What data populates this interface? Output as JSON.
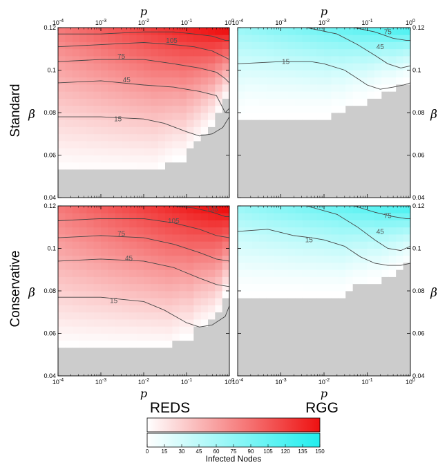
{
  "chart_data": {
    "type": "heatmap",
    "row_labels": [
      "Standard",
      "Conservative"
    ],
    "col_labels": [
      "REDS",
      "RGG"
    ],
    "x_axis": {
      "label": "p",
      "scale": "log",
      "range": [
        0.0001,
        1
      ],
      "ticks": [
        {
          "value": 0.0001,
          "base": "10",
          "exp": "-4"
        },
        {
          "value": 0.001,
          "base": "10",
          "exp": "-3"
        },
        {
          "value": 0.01,
          "base": "10",
          "exp": "-2"
        },
        {
          "value": 0.1,
          "base": "10",
          "exp": "-1"
        },
        {
          "value": 1,
          "base": "10",
          "exp": "0"
        }
      ]
    },
    "y_axis": {
      "label": "β",
      "range": [
        0.04,
        0.12
      ],
      "ticks": [
        {
          "value": 0.04,
          "label": "0.04"
        },
        {
          "value": 0.06,
          "label": "0.06"
        },
        {
          "value": 0.08,
          "label": "0.08"
        },
        {
          "value": 0.1,
          "label": "0.1"
        },
        {
          "value": 0.12,
          "label": "0.12"
        }
      ]
    },
    "colorbar": {
      "label": "Infected Nodes",
      "range": [
        0,
        150
      ],
      "ticks": [
        "0",
        "15",
        "30",
        "45",
        "60",
        "75",
        "90",
        "105",
        "120",
        "135",
        "150"
      ],
      "reds_color": "#ee1111",
      "rgg_color": "#22eeee",
      "null_color": "#cccccc"
    },
    "panels": [
      {
        "row": "Standard",
        "network": "REDS",
        "threshold_beta": [
          0.052,
          0.052,
          0.052,
          0.052,
          0.052,
          0.052,
          0.052,
          0.052,
          0.052,
          0.052,
          0.052,
          0.052,
          0.052,
          0.052,
          0.054,
          0.056,
          0.058,
          0.058,
          0.062,
          0.066,
          0.07,
          0.074,
          0.08,
          0.086
        ],
        "growth": 1.2,
        "contours": [
          {
            "level": "15",
            "points": [
              [
                0.0001,
                0.078
              ],
              [
                0.001,
                0.078
              ],
              [
                0.01,
                0.077
              ],
              [
                0.03,
                0.075
              ],
              [
                0.1,
                0.071
              ],
              [
                0.2,
                0.069
              ],
              [
                0.4,
                0.07
              ],
              [
                0.7,
                0.073
              ],
              [
                1,
                0.078
              ]
            ],
            "label_at": [
              0.0025,
              0.077
            ]
          },
          {
            "level": "45",
            "points": [
              [
                0.0001,
                0.094
              ],
              [
                0.001,
                0.095
              ],
              [
                0.01,
                0.093
              ],
              [
                0.05,
                0.092
              ],
              [
                0.2,
                0.09
              ],
              [
                0.5,
                0.088
              ],
              [
                0.8,
                0.08
              ],
              [
                1,
                0.082
              ]
            ],
            "label_at": [
              0.004,
              0.0955
            ]
          },
          {
            "level": "75",
            "points": [
              [
                0.0001,
                0.104
              ],
              [
                0.001,
                0.105
              ],
              [
                0.01,
                0.105
              ],
              [
                0.05,
                0.103
              ],
              [
                0.2,
                0.101
              ],
              [
                0.5,
                0.099
              ],
              [
                0.8,
                0.096
              ],
              [
                1,
                0.094
              ]
            ],
            "label_at": [
              0.003,
              0.1065
            ]
          },
          {
            "level": "105",
            "points": [
              [
                0.0001,
                0.111
              ],
              [
                0.001,
                0.112
              ],
              [
                0.01,
                0.113
              ],
              [
                0.05,
                0.112
              ],
              [
                0.15,
                0.111
              ],
              [
                0.4,
                0.109
              ],
              [
                0.8,
                0.106
              ],
              [
                1,
                0.105
              ]
            ],
            "label_at": [
              0.045,
              0.114
            ]
          },
          {
            "level": "",
            "points": [
              [
                0.0001,
                0.117
              ],
              [
                0.001,
                0.117
              ],
              [
                0.01,
                0.118
              ],
              [
                0.05,
                0.118
              ],
              [
                0.15,
                0.117
              ],
              [
                0.4,
                0.116
              ],
              [
                0.8,
                0.114
              ],
              [
                1,
                0.114
              ]
            ],
            "label_at": null
          }
        ]
      },
      {
        "row": "Standard",
        "network": "RGG",
        "threshold_beta": [
          0.076,
          0.078,
          0.078,
          0.078,
          0.078,
          0.078,
          0.078,
          0.078,
          0.078,
          0.078,
          0.078,
          0.078,
          0.078,
          0.08,
          0.08,
          0.082,
          0.084,
          0.084,
          0.086,
          0.088,
          0.09,
          0.09,
          0.092,
          0.094
        ],
        "growth": 1.6,
        "contours": [
          {
            "level": "15",
            "points": [
              [
                0.0001,
                0.103
              ],
              [
                0.001,
                0.104
              ],
              [
                0.005,
                0.104
              ],
              [
                0.01,
                0.103
              ],
              [
                0.03,
                0.1
              ],
              [
                0.06,
                0.096
              ],
              [
                0.1,
                0.093
              ],
              [
                0.2,
                0.091
              ],
              [
                0.4,
                0.092
              ],
              [
                0.7,
                0.093
              ],
              [
                1,
                0.094
              ]
            ],
            "label_at": [
              0.0013,
              0.104
            ]
          },
          {
            "level": "45",
            "points": [
              [
                0.004,
                0.12
              ],
              [
                0.02,
                0.117
              ],
              [
                0.06,
                0.112
              ],
              [
                0.15,
                0.107
              ],
              [
                0.3,
                0.103
              ],
              [
                0.6,
                0.101
              ],
              [
                1,
                0.102
              ]
            ],
            "label_at": [
              0.2,
              0.111
            ]
          },
          {
            "level": "75",
            "points": [
              [
                0.05,
                0.12
              ],
              [
                0.15,
                0.118
              ],
              [
                0.4,
                0.115
              ],
              [
                0.8,
                0.114
              ],
              [
                1,
                0.114
              ]
            ],
            "label_at": [
              0.3,
              0.118
            ]
          }
        ]
      },
      {
        "row": "Conservative",
        "network": "REDS",
        "threshold_beta": [
          0.054,
          0.054,
          0.054,
          0.054,
          0.054,
          0.054,
          0.054,
          0.054,
          0.054,
          0.054,
          0.054,
          0.054,
          0.054,
          0.054,
          0.054,
          0.054,
          0.056,
          0.058,
          0.058,
          0.062,
          0.064,
          0.066,
          0.07,
          0.078
        ],
        "growth": 1.1,
        "contours": [
          {
            "level": "15",
            "points": [
              [
                0.0001,
                0.077
              ],
              [
                0.001,
                0.077
              ],
              [
                0.01,
                0.075
              ],
              [
                0.03,
                0.071
              ],
              [
                0.1,
                0.065
              ],
              [
                0.2,
                0.063
              ],
              [
                0.4,
                0.064
              ],
              [
                0.8,
                0.068
              ],
              [
                1,
                0.073
              ]
            ],
            "label_at": [
              0.002,
              0.0755
            ]
          },
          {
            "level": "45",
            "points": [
              [
                0.0001,
                0.094
              ],
              [
                0.001,
                0.095
              ],
              [
                0.01,
                0.094
              ],
              [
                0.05,
                0.091
              ],
              [
                0.2,
                0.086
              ],
              [
                0.5,
                0.083
              ],
              [
                1,
                0.082
              ]
            ],
            "label_at": [
              0.0045,
              0.0955
            ]
          },
          {
            "level": "75",
            "points": [
              [
                0.0001,
                0.105
              ],
              [
                0.001,
                0.106
              ],
              [
                0.01,
                0.105
              ],
              [
                0.05,
                0.102
              ],
              [
                0.2,
                0.098
              ],
              [
                0.5,
                0.095
              ],
              [
                1,
                0.094
              ]
            ],
            "label_at": [
              0.003,
              0.107
            ]
          },
          {
            "level": "105",
            "points": [
              [
                0.0001,
                0.113
              ],
              [
                0.001,
                0.114
              ],
              [
                0.01,
                0.114
              ],
              [
                0.05,
                0.112
              ],
              [
                0.2,
                0.109
              ],
              [
                0.5,
                0.106
              ],
              [
                1,
                0.105
              ]
            ],
            "label_at": [
              0.05,
              0.113
            ]
          },
          {
            "level": "135",
            "points": [
              [
                0.05,
                0.12
              ],
              [
                0.15,
                0.119
              ],
              [
                0.4,
                0.117
              ],
              [
                0.8,
                0.115
              ],
              [
                1,
                0.115
              ]
            ],
            "label_at": [
              0.4,
              0.1185
            ]
          }
        ]
      },
      {
        "row": "Conservative",
        "network": "RGG",
        "threshold_beta": [
          0.078,
          0.078,
          0.078,
          0.078,
          0.078,
          0.078,
          0.078,
          0.078,
          0.078,
          0.078,
          0.078,
          0.078,
          0.078,
          0.078,
          0.078,
          0.08,
          0.082,
          0.082,
          0.084,
          0.084,
          0.086,
          0.088,
          0.09,
          0.092
        ],
        "growth": 1.5,
        "contours": [
          {
            "level": "15",
            "points": [
              [
                0.0001,
                0.108
              ],
              [
                0.0005,
                0.109
              ],
              [
                0.002,
                0.106
              ],
              [
                0.005,
                0.105
              ],
              [
                0.01,
                0.104
              ],
              [
                0.03,
                0.101
              ],
              [
                0.07,
                0.096
              ],
              [
                0.15,
                0.093
              ],
              [
                0.3,
                0.092
              ],
              [
                0.6,
                0.092
              ],
              [
                1,
                0.093
              ]
            ],
            "label_at": [
              0.0045,
              0.104
            ]
          },
          {
            "level": "45",
            "points": [
              [
                0.004,
                0.12
              ],
              [
                0.02,
                0.116
              ],
              [
                0.06,
                0.11
              ],
              [
                0.15,
                0.104
              ],
              [
                0.3,
                0.1
              ],
              [
                0.6,
                0.099
              ],
              [
                1,
                0.101
              ]
            ],
            "label_at": [
              0.2,
              0.108
            ]
          },
          {
            "level": "75",
            "points": [
              [
                0.05,
                0.12
              ],
              [
                0.15,
                0.117
              ],
              [
                0.4,
                0.115
              ],
              [
                0.8,
                0.114
              ],
              [
                1,
                0.114
              ]
            ],
            "label_at": [
              0.3,
              0.1155
            ]
          }
        ]
      }
    ]
  }
}
